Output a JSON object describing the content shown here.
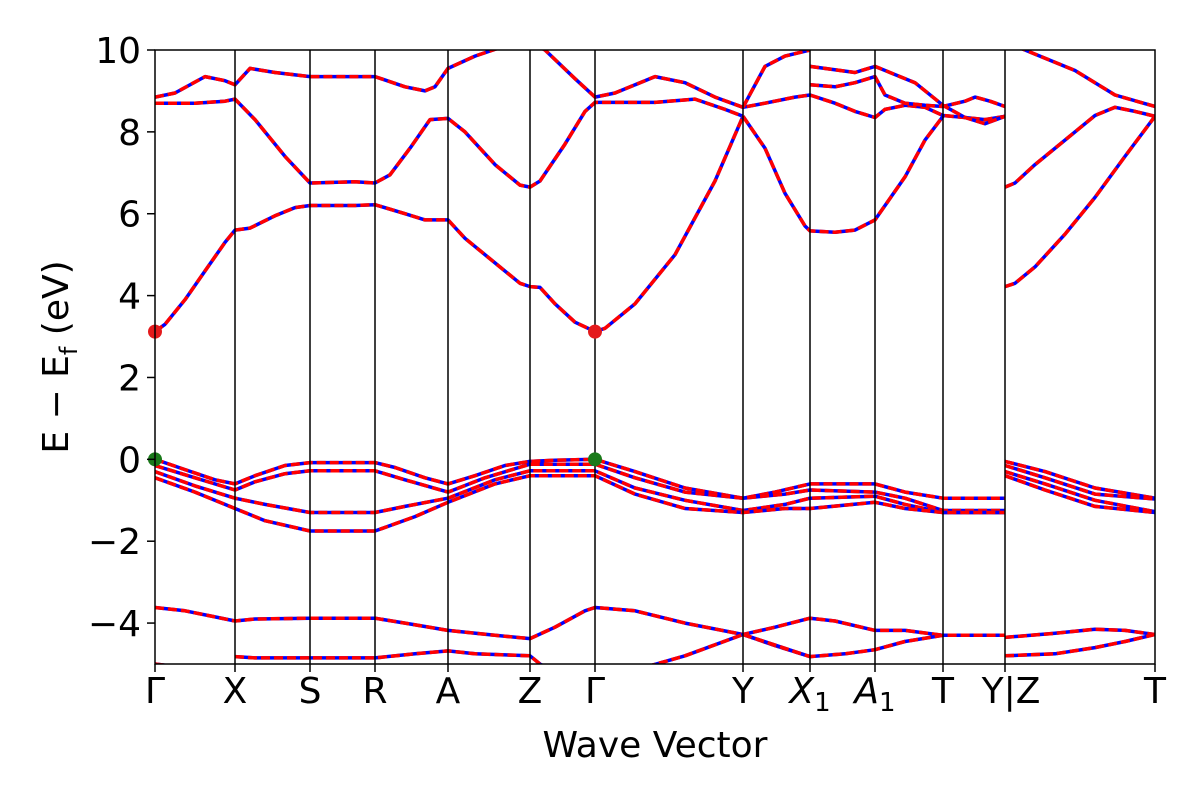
{
  "chart_data": {
    "type": "line",
    "xlabel": "Wave Vector",
    "ylabel": {
      "main": "E − E",
      "sub": "f",
      "unit": " (eV)"
    },
    "ylim": [
      -5,
      10
    ],
    "yticks": [
      -4,
      -2,
      0,
      2,
      4,
      6,
      8,
      10
    ],
    "ytick_labels": [
      "−4",
      "−2",
      "0",
      "2",
      "4",
      "6",
      "8",
      "10"
    ],
    "kpath": [
      {
        "x": 0,
        "label": "Γ"
      },
      {
        "x": 0.8,
        "label": "X"
      },
      {
        "x": 1.55,
        "label": "S"
      },
      {
        "x": 2.2,
        "label": "R"
      },
      {
        "x": 2.93,
        "label": "A"
      },
      {
        "x": 3.75,
        "label": "Z"
      },
      {
        "x": 4.4,
        "label": "Γ"
      },
      {
        "x": 5.88,
        "label": "Y"
      },
      {
        "x": 6.55,
        "label": "X",
        "sub": "1"
      },
      {
        "x": 7.2,
        "label": "A",
        "sub": "1"
      },
      {
        "x": 7.88,
        "label": "T"
      },
      {
        "x": 8.5,
        "label": "Y",
        "break": true
      },
      {
        "x": 10,
        "label": "T"
      }
    ],
    "break_label": "Z",
    "xlim": [
      0,
      10
    ],
    "special_points": [
      {
        "name": "CBM",
        "x": 0,
        "y": 3.12,
        "color": "#e41a1c"
      },
      {
        "name": "CBM",
        "x": 4.4,
        "y": 3.12,
        "color": "#e41a1c"
      },
      {
        "name": "VBM",
        "x": 0,
        "y": 0.0,
        "color": "#1a7a1a"
      },
      {
        "name": "VBM",
        "x": 4.4,
        "y": 0.0,
        "color": "#1a7a1a"
      }
    ],
    "series_style": {
      "solid_color": "#0000ff",
      "dashed_color": "#ff0000"
    },
    "bands": [
      [
        [
          0,
          3.12
        ],
        [
          0.1,
          3.3
        ],
        [
          0.3,
          3.9
        ],
        [
          0.5,
          4.6
        ],
        [
          0.7,
          5.3
        ],
        [
          0.8,
          5.6
        ],
        [
          0.95,
          5.65
        ],
        [
          1.2,
          5.95
        ],
        [
          1.4,
          6.15
        ],
        [
          1.55,
          6.2
        ],
        [
          2.0,
          6.2
        ],
        [
          2.2,
          6.22
        ],
        [
          2.5,
          6.0
        ],
        [
          2.7,
          5.85
        ],
        [
          2.93,
          5.85
        ],
        [
          3.1,
          5.4
        ],
        [
          3.4,
          4.8
        ],
        [
          3.65,
          4.3
        ],
        [
          3.75,
          4.22
        ],
        [
          3.85,
          4.2
        ],
        [
          4.0,
          3.8
        ],
        [
          4.2,
          3.35
        ],
        [
          4.4,
          3.12
        ],
        [
          4.5,
          3.2
        ],
        [
          4.8,
          3.8
        ],
        [
          5.2,
          5.0
        ],
        [
          5.6,
          6.8
        ],
        [
          5.88,
          8.38
        ]
      ],
      [
        [
          0,
          8.7
        ],
        [
          0.4,
          8.7
        ],
        [
          0.7,
          8.75
        ],
        [
          0.8,
          8.8
        ],
        [
          1.0,
          8.3
        ],
        [
          1.3,
          7.4
        ],
        [
          1.55,
          6.75
        ],
        [
          2.0,
          6.78
        ],
        [
          2.2,
          6.75
        ],
        [
          2.35,
          6.95
        ],
        [
          2.55,
          7.6
        ],
        [
          2.75,
          8.3
        ],
        [
          2.93,
          8.33
        ],
        [
          3.1,
          8.0
        ],
        [
          3.4,
          7.2
        ],
        [
          3.65,
          6.7
        ],
        [
          3.75,
          6.65
        ],
        [
          3.85,
          6.8
        ],
        [
          4.1,
          7.7
        ],
        [
          4.3,
          8.5
        ],
        [
          4.4,
          8.72
        ],
        [
          5.0,
          8.72
        ],
        [
          5.4,
          8.8
        ],
        [
          5.7,
          8.55
        ],
        [
          5.88,
          8.38
        ]
      ],
      [
        [
          0,
          8.85
        ],
        [
          0.2,
          8.95
        ],
        [
          0.5,
          9.35
        ],
        [
          0.7,
          9.25
        ],
        [
          0.8,
          9.15
        ],
        [
          0.95,
          9.55
        ],
        [
          1.2,
          9.45
        ],
        [
          1.55,
          9.35
        ],
        [
          2.2,
          9.35
        ],
        [
          2.5,
          9.1
        ],
        [
          2.7,
          9.0
        ],
        [
          2.8,
          9.1
        ],
        [
          2.93,
          9.55
        ],
        [
          3.2,
          9.85
        ],
        [
          3.5,
          10.1
        ]
      ],
      [
        [
          3.75,
          10.2
        ],
        [
          3.9,
          10.0
        ],
        [
          4.2,
          9.3
        ],
        [
          4.4,
          8.85
        ],
        [
          4.6,
          8.95
        ],
        [
          5.0,
          9.35
        ],
        [
          5.3,
          9.2
        ],
        [
          5.6,
          8.85
        ],
        [
          5.88,
          8.6
        ],
        [
          6.1,
          8.7
        ],
        [
          6.4,
          8.85
        ],
        [
          6.55,
          8.9
        ],
        [
          6.8,
          8.7
        ],
        [
          7.0,
          8.5
        ],
        [
          7.2,
          8.35
        ],
        [
          7.3,
          8.55
        ],
        [
          7.5,
          8.65
        ],
        [
          7.7,
          8.6
        ],
        [
          7.88,
          8.4
        ],
        [
          8.1,
          8.35
        ],
        [
          8.3,
          8.3
        ],
        [
          8.5,
          8.38
        ]
      ],
      [
        [
          5.88,
          8.38
        ],
        [
          6.1,
          7.6
        ],
        [
          6.3,
          6.5
        ],
        [
          6.5,
          5.7
        ],
        [
          6.55,
          5.58
        ],
        [
          6.8,
          5.55
        ],
        [
          7.0,
          5.6
        ],
        [
          7.2,
          5.85
        ],
        [
          7.5,
          6.9
        ],
        [
          7.7,
          7.8
        ],
        [
          7.88,
          8.38
        ]
      ],
      [
        [
          5.88,
          8.6
        ],
        [
          6.1,
          9.6
        ],
        [
          6.3,
          9.85
        ],
        [
          6.55,
          10.0
        ]
      ],
      [
        [
          6.55,
          9.15
        ],
        [
          6.8,
          9.1
        ],
        [
          7.0,
          9.2
        ],
        [
          7.2,
          9.35
        ],
        [
          7.3,
          8.9
        ],
        [
          7.5,
          8.7
        ],
        [
          7.7,
          8.65
        ],
        [
          7.88,
          8.62
        ],
        [
          8.1,
          8.75
        ],
        [
          8.2,
          8.85
        ],
        [
          8.35,
          8.75
        ],
        [
          8.5,
          8.62
        ]
      ],
      [
        [
          6.55,
          9.6
        ],
        [
          7.0,
          9.45
        ],
        [
          7.2,
          9.6
        ],
        [
          7.6,
          9.2
        ],
        [
          7.88,
          8.65
        ],
        [
          8.1,
          8.35
        ],
        [
          8.3,
          8.2
        ],
        [
          8.5,
          8.38
        ]
      ],
      [
        [
          8.5,
          6.65
        ],
        [
          8.6,
          6.75
        ],
        [
          8.8,
          7.2
        ],
        [
          9.1,
          7.8
        ],
        [
          9.4,
          8.4
        ],
        [
          9.6,
          8.6
        ],
        [
          9.8,
          8.5
        ],
        [
          10,
          8.38
        ]
      ],
      [
        [
          8.5,
          4.22
        ],
        [
          8.6,
          4.3
        ],
        [
          8.8,
          4.7
        ],
        [
          9.1,
          5.5
        ],
        [
          9.4,
          6.4
        ],
        [
          9.7,
          7.4
        ],
        [
          10,
          8.38
        ]
      ],
      [
        [
          8.5,
          10.2
        ],
        [
          8.8,
          9.9
        ],
        [
          9.2,
          9.5
        ],
        [
          9.6,
          8.9
        ],
        [
          10,
          8.62
        ]
      ],
      [
        [
          0,
          0.0
        ],
        [
          0.3,
          -0.25
        ],
        [
          0.6,
          -0.5
        ],
        [
          0.8,
          -0.6
        ],
        [
          1.0,
          -0.4
        ],
        [
          1.3,
          -0.15
        ],
        [
          1.55,
          -0.08
        ],
        [
          2.2,
          -0.08
        ],
        [
          2.4,
          -0.2
        ],
        [
          2.7,
          -0.45
        ],
        [
          2.93,
          -0.6
        ],
        [
          3.2,
          -0.4
        ],
        [
          3.5,
          -0.15
        ],
        [
          3.75,
          -0.05
        ],
        [
          4.0,
          -0.02
        ],
        [
          4.4,
          0.0
        ],
        [
          4.8,
          -0.3
        ],
        [
          5.3,
          -0.7
        ],
        [
          5.88,
          -0.95
        ],
        [
          6.2,
          -0.8
        ],
        [
          6.55,
          -0.6
        ],
        [
          7.0,
          -0.6
        ],
        [
          7.2,
          -0.6
        ],
        [
          7.5,
          -0.8
        ],
        [
          7.88,
          -0.95
        ],
        [
          8.5,
          -0.95
        ]
      ],
      [
        [
          0,
          -0.15
        ],
        [
          0.4,
          -0.45
        ],
        [
          0.8,
          -0.75
        ],
        [
          1.0,
          -0.55
        ],
        [
          1.3,
          -0.35
        ],
        [
          1.55,
          -0.28
        ],
        [
          2.2,
          -0.28
        ],
        [
          2.5,
          -0.5
        ],
        [
          2.93,
          -0.8
        ],
        [
          3.3,
          -0.45
        ],
        [
          3.75,
          -0.12
        ],
        [
          4.4,
          -0.12
        ],
        [
          4.8,
          -0.45
        ],
        [
          5.3,
          -0.8
        ],
        [
          5.88,
          -0.95
        ],
        [
          6.3,
          -0.85
        ],
        [
          6.55,
          -0.75
        ],
        [
          7.2,
          -0.8
        ],
        [
          7.5,
          -0.95
        ],
        [
          7.88,
          -1.25
        ],
        [
          8.5,
          -1.25
        ]
      ],
      [
        [
          0,
          -0.3
        ],
        [
          0.4,
          -0.65
        ],
        [
          0.8,
          -0.95
        ],
        [
          1.1,
          -1.1
        ],
        [
          1.55,
          -1.3
        ],
        [
          2.2,
          -1.3
        ],
        [
          2.5,
          -1.15
        ],
        [
          2.93,
          -0.95
        ],
        [
          3.4,
          -0.5
        ],
        [
          3.75,
          -0.28
        ],
        [
          4.4,
          -0.28
        ],
        [
          4.8,
          -0.7
        ],
        [
          5.3,
          -1.0
        ],
        [
          5.88,
          -1.25
        ],
        [
          6.3,
          -1.1
        ],
        [
          6.55,
          -0.95
        ],
        [
          7.2,
          -0.9
        ],
        [
          7.5,
          -1.1
        ],
        [
          7.88,
          -1.3
        ],
        [
          8.5,
          -1.3
        ]
      ],
      [
        [
          0,
          -0.45
        ],
        [
          0.4,
          -0.8
        ],
        [
          0.8,
          -1.2
        ],
        [
          1.1,
          -1.5
        ],
        [
          1.55,
          -1.75
        ],
        [
          2.2,
          -1.75
        ],
        [
          2.6,
          -1.4
        ],
        [
          2.93,
          -1.05
        ],
        [
          3.4,
          -0.6
        ],
        [
          3.75,
          -0.4
        ],
        [
          4.4,
          -0.4
        ],
        [
          4.8,
          -0.85
        ],
        [
          5.3,
          -1.2
        ],
        [
          5.88,
          -1.3
        ],
        [
          6.3,
          -1.2
        ],
        [
          6.55,
          -1.2
        ],
        [
          7.2,
          -1.05
        ],
        [
          7.5,
          -1.2
        ],
        [
          7.88,
          -1.3
        ],
        [
          8.5,
          -1.3
        ]
      ],
      [
        [
          8.5,
          -0.05
        ],
        [
          8.9,
          -0.3
        ],
        [
          9.4,
          -0.7
        ],
        [
          10,
          -0.95
        ]
      ],
      [
        [
          8.5,
          -0.15
        ],
        [
          8.9,
          -0.45
        ],
        [
          9.4,
          -0.85
        ],
        [
          10,
          -0.97
        ]
      ],
      [
        [
          8.5,
          -0.3
        ],
        [
          8.9,
          -0.6
        ],
        [
          9.4,
          -1.0
        ],
        [
          10,
          -1.28
        ]
      ],
      [
        [
          8.5,
          -0.4
        ],
        [
          8.9,
          -0.75
        ],
        [
          9.4,
          -1.15
        ],
        [
          10,
          -1.3
        ]
      ],
      [
        [
          0,
          -3.62
        ],
        [
          0.3,
          -3.7
        ],
        [
          0.6,
          -3.85
        ],
        [
          0.8,
          -3.95
        ],
        [
          1.0,
          -3.9
        ],
        [
          1.55,
          -3.88
        ],
        [
          2.2,
          -3.88
        ],
        [
          2.5,
          -4.0
        ],
        [
          2.93,
          -4.18
        ],
        [
          3.4,
          -4.3
        ],
        [
          3.75,
          -4.38
        ],
        [
          4.0,
          -4.1
        ],
        [
          4.3,
          -3.7
        ],
        [
          4.4,
          -3.62
        ],
        [
          4.8,
          -3.7
        ],
        [
          5.3,
          -4.0
        ],
        [
          5.88,
          -4.28
        ],
        [
          6.2,
          -4.1
        ],
        [
          6.55,
          -3.88
        ],
        [
          6.8,
          -3.95
        ],
        [
          7.2,
          -4.18
        ],
        [
          7.5,
          -4.18
        ],
        [
          7.88,
          -4.3
        ],
        [
          8.5,
          -4.3
        ]
      ],
      [
        [
          0,
          -5.0
        ],
        [
          0.5,
          -5.15
        ],
        [
          0.8,
          -5.2
        ]
      ],
      [
        [
          0.8,
          -4.82
        ],
        [
          1.0,
          -4.85
        ],
        [
          1.55,
          -4.85
        ],
        [
          2.2,
          -4.85
        ],
        [
          2.6,
          -4.75
        ],
        [
          2.93,
          -4.68
        ],
        [
          3.2,
          -4.75
        ],
        [
          3.75,
          -4.8
        ],
        [
          3.85,
          -5.0
        ],
        [
          4.0,
          -5.2
        ]
      ],
      [
        [
          4.4,
          -5.2
        ],
        [
          4.8,
          -5.15
        ],
        [
          5.3,
          -4.8
        ],
        [
          5.88,
          -4.28
        ],
        [
          6.2,
          -4.55
        ],
        [
          6.55,
          -4.82
        ],
        [
          6.9,
          -4.75
        ],
        [
          7.2,
          -4.65
        ],
        [
          7.5,
          -4.45
        ],
        [
          7.88,
          -4.3
        ],
        [
          8.5,
          -4.3
        ]
      ],
      [
        [
          5.88,
          -4.28
        ],
        [
          6.55,
          -4.82
        ]
      ],
      [
        [
          8.5,
          -4.35
        ],
        [
          9.0,
          -4.25
        ],
        [
          9.4,
          -4.15
        ],
        [
          9.7,
          -4.18
        ],
        [
          10,
          -4.28
        ]
      ],
      [
        [
          8.5,
          -4.8
        ],
        [
          9.0,
          -4.75
        ],
        [
          9.4,
          -4.6
        ],
        [
          9.7,
          -4.45
        ],
        [
          10,
          -4.28
        ]
      ]
    ]
  }
}
